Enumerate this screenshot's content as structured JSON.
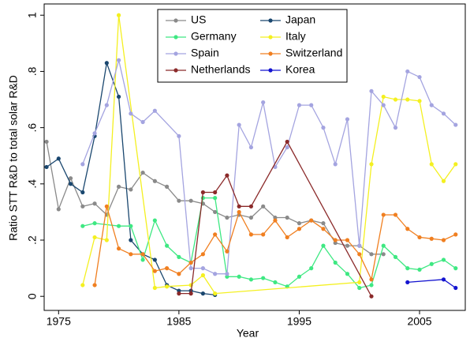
{
  "chart_data": {
    "type": "line",
    "xlabel": "Year",
    "ylabel": "Ratio STT R&D to total solar R&D",
    "xlim": [
      1973.8,
      2008.8
    ],
    "ylim": [
      -0.05,
      1.04
    ],
    "xticks": [
      1975,
      1985,
      1995,
      2005
    ],
    "yticks": [
      0,
      {
        "value": 0.2,
        "label": ".2"
      },
      {
        "value": 0.4,
        "label": ".4"
      },
      {
        "value": 0.6,
        "label": ".6"
      },
      {
        "value": 0.8,
        "label": ".8"
      },
      1
    ],
    "legend": "top",
    "series": [
      {
        "name": "US",
        "color": "#8a8a8a",
        "x": [
          1974,
          1975,
          1976,
          1977,
          1978,
          1979,
          1980,
          1981,
          1982,
          1983,
          1984,
          1985,
          1986,
          1987,
          1988,
          1989,
          1990,
          1991,
          1992,
          1993,
          1994,
          1995,
          1996,
          1997,
          1998,
          1999,
          2000,
          2001,
          2002
        ],
        "values": [
          0.55,
          0.31,
          0.42,
          0.32,
          0.33,
          0.29,
          0.39,
          0.38,
          0.44,
          0.41,
          0.39,
          0.34,
          0.34,
          0.33,
          0.3,
          0.28,
          0.29,
          0.28,
          0.32,
          0.28,
          0.28,
          0.26,
          0.27,
          0.26,
          0.19,
          0.18,
          0.18,
          0.15,
          0.15
        ]
      },
      {
        "name": "Japan",
        "color": "#1a476f",
        "x": [
          1974,
          1975,
          1976,
          1977,
          1978,
          1979,
          1980,
          1981,
          1982,
          1983,
          1984,
          1985,
          1986,
          1987,
          1988
        ],
        "values": [
          0.46,
          0.49,
          0.4,
          0.37,
          0.57,
          0.83,
          0.71,
          0.2,
          0.15,
          0.13,
          0.04,
          0.02,
          0.02,
          0.01,
          0.005
        ]
      },
      {
        "name": "Germany",
        "color": "#3ee882",
        "x": [
          1977,
          1978,
          1980,
          1981,
          1982,
          1983,
          1984,
          1985,
          1986,
          1987,
          1988,
          1989,
          1990,
          1991,
          1992,
          1993,
          1994,
          1995,
          1996,
          1997,
          1998,
          1999,
          2000,
          2001,
          2002,
          2003,
          2004,
          2005,
          2006,
          2007,
          2008
        ],
        "values": [
          0.25,
          0.26,
          0.25,
          0.25,
          0.13,
          0.27,
          0.18,
          0.14,
          0.12,
          0.35,
          0.35,
          0.07,
          0.07,
          0.06,
          0.065,
          0.05,
          0.035,
          0.07,
          0.1,
          0.18,
          0.12,
          0.08,
          0.03,
          0.04,
          0.18,
          0.14,
          0.1,
          0.095,
          0.115,
          0.13,
          0.1
        ]
      },
      {
        "name": "Italy",
        "color": "#f4f020",
        "x": [
          1977,
          1978,
          1979,
          1980,
          1983,
          1984,
          1986,
          1987,
          1988,
          2000,
          2001,
          2002,
          2003,
          2004,
          2005,
          2006,
          2007,
          2008
        ],
        "values": [
          0.04,
          0.21,
          0.2,
          1.0,
          0.03,
          0.035,
          0.04,
          0.075,
          0.01,
          0.05,
          0.47,
          0.71,
          0.7,
          0.7,
          0.695,
          0.47,
          0.41,
          0.47
        ]
      },
      {
        "name": "Spain",
        "color": "#a4a4e0",
        "x": [
          1977,
          1978,
          1979,
          1980,
          1981,
          1982,
          1983,
          1985,
          1986,
          1987,
          1988,
          1989,
          1990,
          1991,
          1992,
          1993,
          1994,
          1995,
          1996,
          1997,
          1998,
          1999,
          2000,
          2001,
          2002,
          2003,
          2004,
          2005,
          2006,
          2007,
          2008
        ],
        "values": [
          0.47,
          0.58,
          0.68,
          0.84,
          0.65,
          0.62,
          0.66,
          0.57,
          0.1,
          0.1,
          0.08,
          0.08,
          0.61,
          0.53,
          0.69,
          0.46,
          0.53,
          0.68,
          0.68,
          0.6,
          0.47,
          0.63,
          0.18,
          0.73,
          0.68,
          0.6,
          0.8,
          0.78,
          0.68,
          0.65,
          0.61
        ]
      },
      {
        "name": "Switzerland",
        "color": "#f07f20",
        "x": [
          1978,
          1979,
          1980,
          1981,
          1982,
          1983,
          1984,
          1985,
          1986,
          1987,
          1988,
          1989,
          1990,
          1991,
          1992,
          1993,
          1994,
          1995,
          1996,
          1997,
          1998,
          1999,
          2000,
          2001,
          2002,
          2003,
          2004,
          2005,
          2006,
          2007,
          2008
        ],
        "values": [
          0.04,
          0.32,
          0.17,
          0.15,
          0.15,
          0.09,
          0.1,
          0.08,
          0.12,
          0.15,
          0.22,
          0.16,
          0.3,
          0.22,
          0.22,
          0.27,
          0.21,
          0.24,
          0.27,
          0.24,
          0.2,
          0.2,
          0.15,
          0.06,
          0.29,
          0.29,
          0.24,
          0.21,
          0.205,
          0.2,
          0.22
        ]
      },
      {
        "name": "Netherlands",
        "color": "#8b2a2a",
        "x": [
          1985,
          1986,
          1987,
          1988,
          1989,
          1990,
          1991,
          1994,
          2001
        ],
        "values": [
          0.01,
          0.01,
          0.37,
          0.37,
          0.43,
          0.32,
          0.32,
          0.55,
          0.0
        ]
      },
      {
        "name": "Korea",
        "color": "#1414d0",
        "x": [
          2004,
          2007,
          2008
        ],
        "values": [
          0.05,
          0.06,
          0.03
        ]
      }
    ]
  }
}
